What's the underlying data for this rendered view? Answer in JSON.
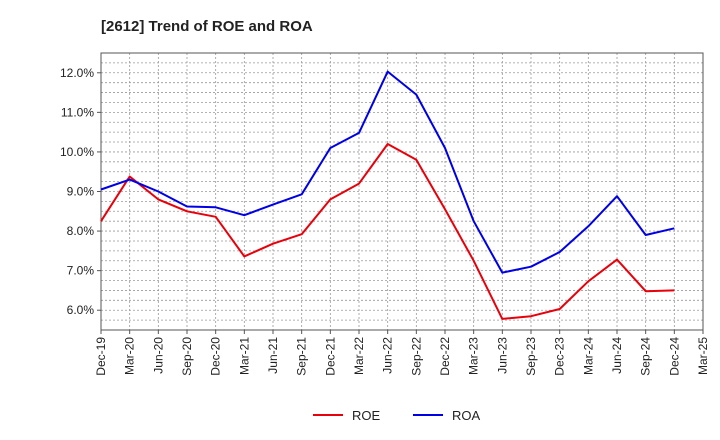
{
  "chart_data": {
    "type": "line",
    "title": "[2612]  Trend of ROE and ROA",
    "xlabel": "",
    "ylabel": "",
    "categories": [
      "Dec-19",
      "Mar-20",
      "Jun-20",
      "Sep-20",
      "Dec-20",
      "Mar-21",
      "Jun-21",
      "Sep-21",
      "Dec-21",
      "Mar-22",
      "Jun-22",
      "Sep-22",
      "Dec-22",
      "Mar-23",
      "Jun-23",
      "Sep-23",
      "Dec-23",
      "Mar-24",
      "Jun-24",
      "Sep-24",
      "Dec-24",
      "Mar-25"
    ],
    "y_ticks": [
      "6.0%",
      "7.0%",
      "8.0%",
      "9.0%",
      "10.0%",
      "11.0%",
      "12.0%"
    ],
    "y_tick_values": [
      6,
      7,
      8,
      9,
      10,
      11,
      12
    ],
    "ylim": [
      5.5,
      12.5
    ],
    "grid": true,
    "legend_position": "bottom-center",
    "series": [
      {
        "name": "ROE",
        "color": "#e8000b",
        "values": [
          8.25,
          9.38,
          8.8,
          8.5,
          8.36,
          7.36,
          7.68,
          7.92,
          8.8,
          9.2,
          10.2,
          9.8,
          8.55,
          7.25,
          5.78,
          5.85,
          6.03,
          6.73,
          7.28,
          6.48,
          6.5,
          null
        ]
      },
      {
        "name": "ROA",
        "color": "#0000e6",
        "values": [
          9.05,
          9.3,
          9.0,
          8.62,
          8.6,
          8.4,
          8.67,
          8.93,
          10.1,
          10.48,
          12.03,
          11.45,
          10.1,
          8.25,
          6.95,
          7.1,
          7.47,
          8.12,
          8.88,
          7.9,
          8.07,
          null
        ]
      }
    ]
  }
}
